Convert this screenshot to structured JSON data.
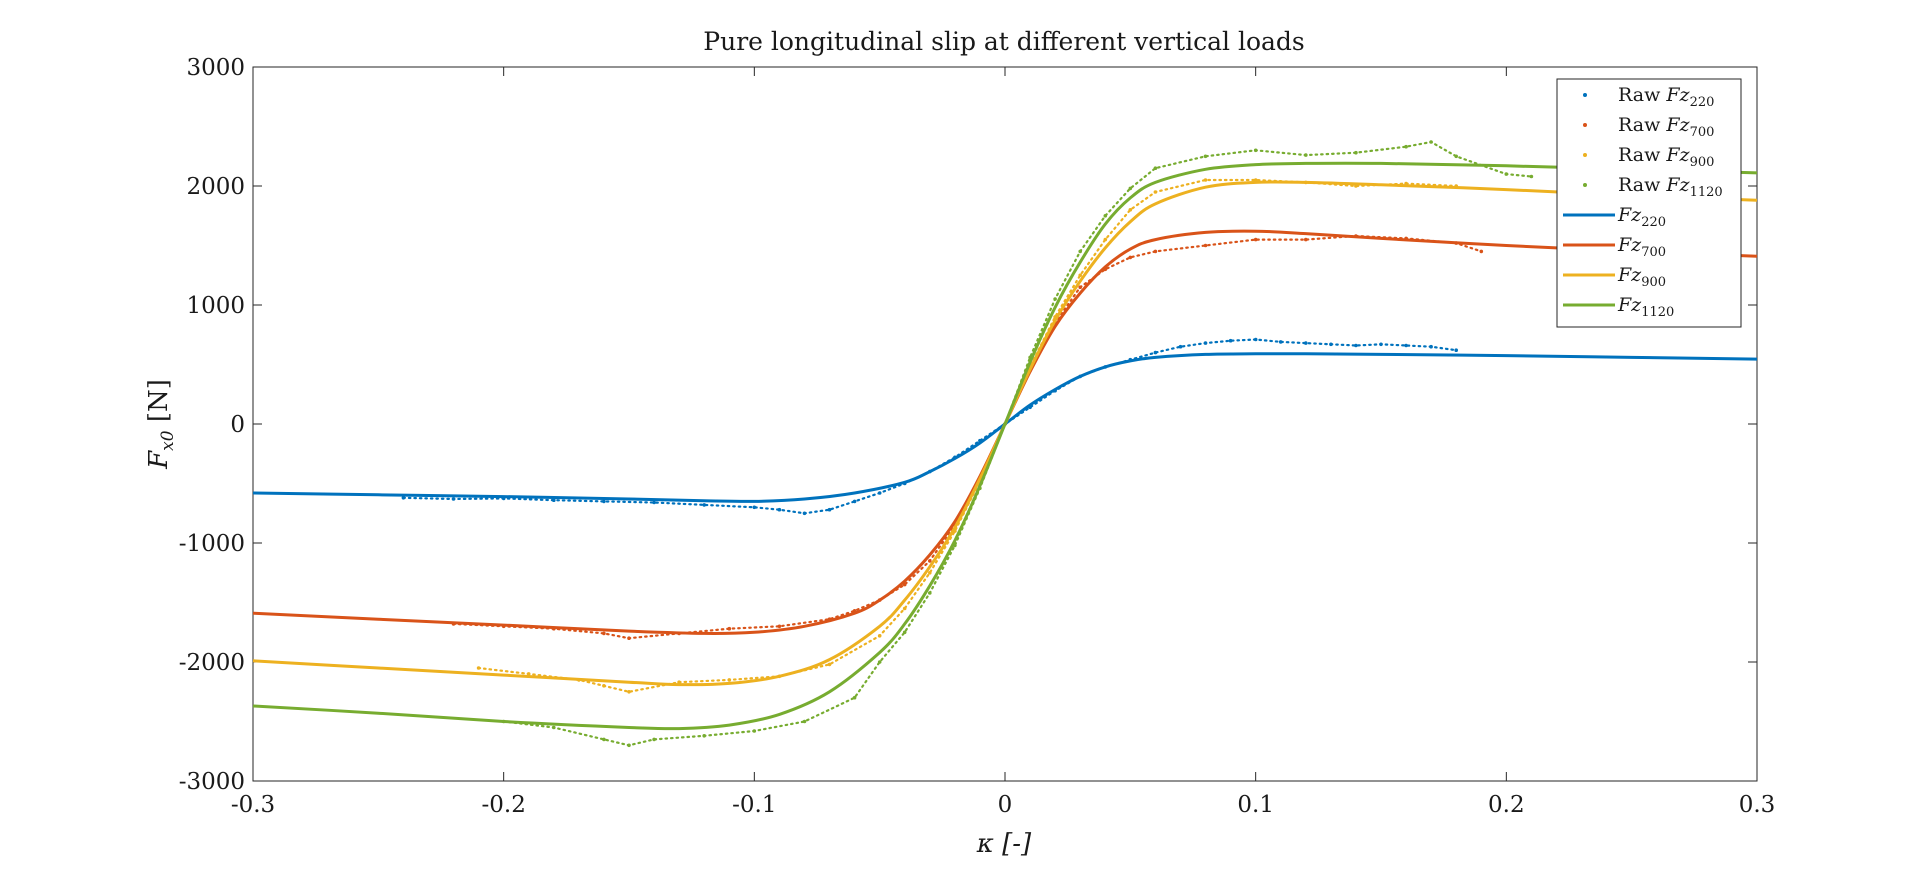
{
  "chart_data": {
    "type": "line",
    "title": "Pure longitudinal slip at different vertical loads",
    "xlabel": "κ [-]",
    "ylabel": "F_x0 [N]",
    "ylabel_main": "F",
    "ylabel_sub": "x0",
    "ylabel_unit": " [N]",
    "xlim": [
      -0.3,
      0.3
    ],
    "ylim": [
      -3000,
      3000
    ],
    "x_ticks": [
      -0.3,
      -0.2,
      -0.1,
      0,
      0.1,
      0.2,
      0.3
    ],
    "x_tick_labels": [
      "-0.3",
      "-0.2",
      "-0.1",
      "0",
      "0.1",
      "0.2",
      "0.3"
    ],
    "y_ticks": [
      -3000,
      -2000,
      -1000,
      0,
      1000,
      2000,
      3000
    ],
    "y_tick_labels": [
      "-3000",
      "-2000",
      "-1000",
      "0",
      "1000",
      "2000",
      "3000"
    ],
    "grid": false,
    "legend_position": "top-right",
    "fit_series": [
      {
        "name": "Fz220",
        "label_main": "Fz",
        "label_sub": "220",
        "color": "#0072BD",
        "x": [
          -0.3,
          -0.25,
          -0.2,
          -0.15,
          -0.12,
          -0.1,
          -0.08,
          -0.06,
          -0.04,
          -0.03,
          -0.02,
          -0.01,
          0,
          0.01,
          0.02,
          0.03,
          0.04,
          0.05,
          0.06,
          0.08,
          0.1,
          0.12,
          0.15,
          0.2,
          0.25,
          0.3
        ],
        "y": [
          -580,
          -595,
          -610,
          -630,
          -645,
          -650,
          -630,
          -580,
          -490,
          -400,
          -290,
          -160,
          0,
          160,
          290,
          400,
          480,
          530,
          560,
          585,
          590,
          590,
          585,
          575,
          560,
          545
        ]
      },
      {
        "name": "Fz700",
        "label_main": "Fz",
        "label_sub": "700",
        "color": "#D95319",
        "x": [
          -0.3,
          -0.25,
          -0.2,
          -0.15,
          -0.12,
          -0.1,
          -0.08,
          -0.06,
          -0.05,
          -0.04,
          -0.03,
          -0.02,
          -0.01,
          0,
          0.01,
          0.02,
          0.03,
          0.04,
          0.05,
          0.06,
          0.08,
          0.1,
          0.12,
          0.15,
          0.2,
          0.25,
          0.3
        ],
        "y": [
          -1590,
          -1640,
          -1690,
          -1740,
          -1760,
          -1750,
          -1700,
          -1590,
          -1480,
          -1320,
          -1100,
          -820,
          -440,
          0,
          440,
          820,
          1100,
          1320,
          1470,
          1550,
          1610,
          1620,
          1600,
          1560,
          1500,
          1450,
          1410
        ]
      },
      {
        "name": "Fz900",
        "label_main": "Fz",
        "label_sub": "900",
        "color": "#EDB120",
        "x": [
          -0.3,
          -0.25,
          -0.2,
          -0.15,
          -0.13,
          -0.11,
          -0.09,
          -0.07,
          -0.05,
          -0.04,
          -0.03,
          -0.02,
          -0.01,
          0,
          0.01,
          0.02,
          0.03,
          0.04,
          0.05,
          0.06,
          0.08,
          0.1,
          0.12,
          0.15,
          0.2,
          0.25,
          0.3
        ],
        "y": [
          -1990,
          -2050,
          -2110,
          -2170,
          -2190,
          -2180,
          -2120,
          -1980,
          -1700,
          -1480,
          -1200,
          -870,
          -460,
          0,
          460,
          870,
          1200,
          1480,
          1700,
          1850,
          1990,
          2030,
          2030,
          2010,
          1970,
          1920,
          1880
        ]
      },
      {
        "name": "Fz1120",
        "label_main": "Fz",
        "label_sub": "1120",
        "color": "#77AC30",
        "x": [
          -0.3,
          -0.25,
          -0.2,
          -0.15,
          -0.13,
          -0.11,
          -0.09,
          -0.07,
          -0.05,
          -0.04,
          -0.03,
          -0.02,
          -0.01,
          0,
          0.01,
          0.02,
          0.03,
          0.04,
          0.05,
          0.06,
          0.08,
          0.1,
          0.12,
          0.15,
          0.2,
          0.25,
          0.3
        ],
        "y": [
          -2370,
          -2430,
          -2500,
          -2550,
          -2560,
          -2530,
          -2440,
          -2250,
          -1920,
          -1680,
          -1360,
          -980,
          -520,
          0,
          520,
          980,
          1360,
          1680,
          1900,
          2030,
          2140,
          2180,
          2190,
          2190,
          2170,
          2140,
          2110
        ]
      }
    ],
    "raw_series": [
      {
        "name": "Raw Fz220",
        "label_prefix": "Raw ",
        "label_main": "Fz",
        "label_sub": "220",
        "color": "#0072BD",
        "x": [
          -0.24,
          -0.22,
          -0.2,
          -0.18,
          -0.16,
          -0.14,
          -0.12,
          -0.1,
          -0.09,
          -0.08,
          -0.07,
          -0.06,
          -0.05,
          -0.04,
          -0.03,
          -0.02,
          -0.01,
          0,
          0.01,
          0.02,
          0.03,
          0.04,
          0.05,
          0.06,
          0.07,
          0.08,
          0.09,
          0.1,
          0.11,
          0.12,
          0.13,
          0.14,
          0.15,
          0.16,
          0.17,
          0.18
        ],
        "y": [
          -620,
          -630,
          -625,
          -640,
          -650,
          -660,
          -680,
          -700,
          -720,
          -750,
          -720,
          -650,
          -580,
          -500,
          -400,
          -280,
          -140,
          0,
          140,
          280,
          400,
          480,
          540,
          600,
          650,
          680,
          700,
          710,
          690,
          680,
          670,
          660,
          670,
          660,
          650,
          620
        ]
      },
      {
        "name": "Raw Fz700",
        "label_prefix": "Raw ",
        "label_main": "Fz",
        "label_sub": "700",
        "color": "#D95319",
        "x": [
          -0.22,
          -0.2,
          -0.18,
          -0.16,
          -0.15,
          -0.13,
          -0.11,
          -0.09,
          -0.07,
          -0.06,
          -0.05,
          -0.04,
          -0.03,
          -0.02,
          -0.01,
          0,
          0.01,
          0.02,
          0.03,
          0.04,
          0.05,
          0.06,
          0.08,
          0.1,
          0.12,
          0.14,
          0.16,
          0.18,
          0.19
        ],
        "y": [
          -1680,
          -1700,
          -1720,
          -1760,
          -1800,
          -1760,
          -1720,
          -1700,
          -1640,
          -1570,
          -1480,
          -1350,
          -1150,
          -850,
          -450,
          0,
          450,
          850,
          1150,
          1300,
          1400,
          1450,
          1500,
          1550,
          1550,
          1580,
          1560,
          1520,
          1450
        ]
      },
      {
        "name": "Raw Fz900",
        "label_prefix": "Raw ",
        "label_main": "Fz",
        "label_sub": "900",
        "color": "#EDB120",
        "x": [
          -0.21,
          -0.19,
          -0.17,
          -0.16,
          -0.15,
          -0.13,
          -0.11,
          -0.09,
          -0.07,
          -0.05,
          -0.04,
          -0.03,
          -0.02,
          -0.01,
          0,
          0.01,
          0.02,
          0.03,
          0.04,
          0.05,
          0.06,
          0.08,
          0.1,
          0.12,
          0.14,
          0.16,
          0.18
        ],
        "y": [
          -2050,
          -2100,
          -2150,
          -2200,
          -2250,
          -2170,
          -2150,
          -2120,
          -2020,
          -1780,
          -1550,
          -1250,
          -900,
          -480,
          0,
          480,
          900,
          1250,
          1550,
          1800,
          1950,
          2050,
          2050,
          2030,
          2000,
          2020,
          2000
        ]
      },
      {
        "name": "Raw Fz1120",
        "label_prefix": "Raw ",
        "label_main": "Fz",
        "label_sub": "1120",
        "color": "#77AC30",
        "x": [
          -0.2,
          -0.18,
          -0.16,
          -0.15,
          -0.14,
          -0.12,
          -0.1,
          -0.08,
          -0.06,
          -0.05,
          -0.04,
          -0.03,
          -0.02,
          -0.01,
          0,
          0.01,
          0.02,
          0.03,
          0.04,
          0.05,
          0.06,
          0.08,
          0.1,
          0.12,
          0.14,
          0.16,
          0.17,
          0.18,
          0.2,
          0.21
        ],
        "y": [
          -2500,
          -2550,
          -2650,
          -2700,
          -2650,
          -2620,
          -2580,
          -2500,
          -2300,
          -2000,
          -1750,
          -1420,
          -1020,
          -540,
          0,
          560,
          1050,
          1450,
          1750,
          1980,
          2150,
          2250,
          2300,
          2260,
          2280,
          2330,
          2370,
          2250,
          2100,
          2080
        ]
      }
    ]
  }
}
